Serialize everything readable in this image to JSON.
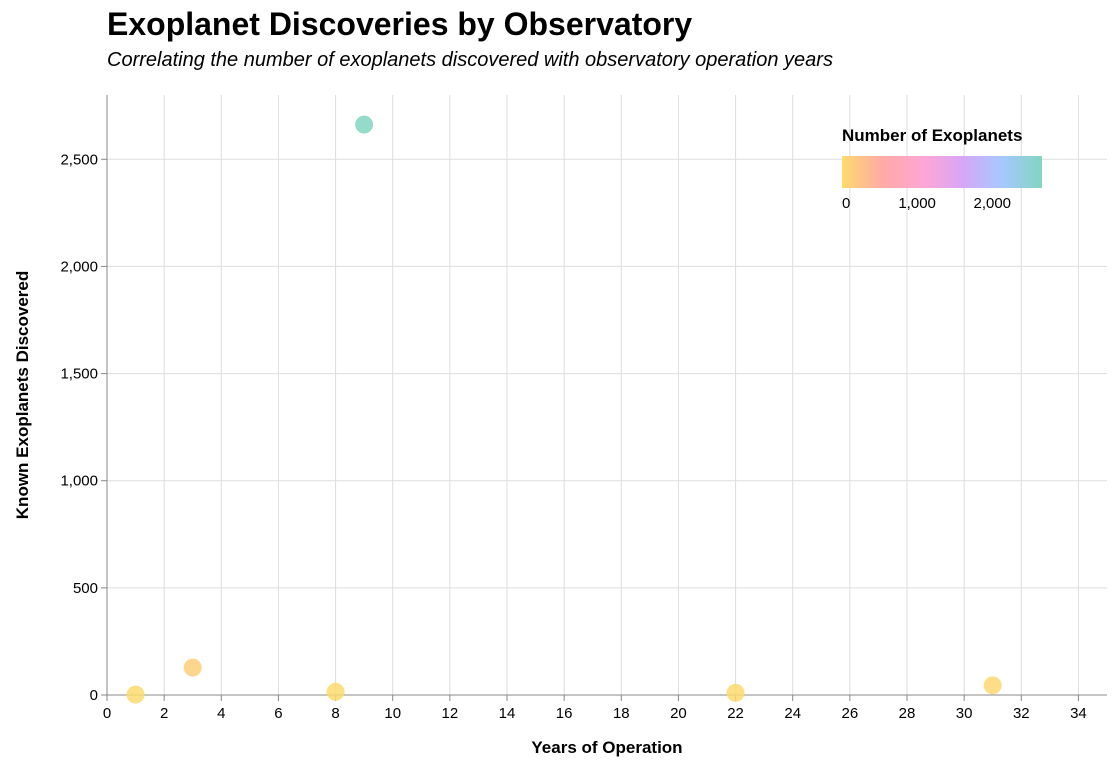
{
  "chart_data": {
    "type": "scatter",
    "title": "Exoplanet Discoveries by Observatory",
    "subtitle": "Correlating the number of exoplanets discovered with observatory operation years",
    "xlabel": "Years of Operation",
    "ylabel": "Known Exoplanets Discovered",
    "xlim": [
      0,
      35
    ],
    "ylim": [
      0,
      2800
    ],
    "x_ticks": [
      0,
      2,
      4,
      6,
      8,
      10,
      12,
      14,
      16,
      18,
      20,
      22,
      24,
      26,
      28,
      30,
      32,
      34
    ],
    "y_ticks": [
      0,
      500,
      1000,
      1500,
      2000,
      2500
    ],
    "y_tick_labels": [
      "0",
      "500",
      "1,000",
      "1,500",
      "2,000",
      "2,500"
    ],
    "grid": true,
    "points": [
      {
        "x": 1,
        "y": 2
      },
      {
        "x": 3,
        "y": 128
      },
      {
        "x": 8,
        "y": 15
      },
      {
        "x": 9,
        "y": 2662
      },
      {
        "x": 22,
        "y": 10
      },
      {
        "x": 31,
        "y": 45
      }
    ],
    "legend": {
      "title": "Number of Exoplanets",
      "placement": "top-right",
      "domain": [
        0,
        2662
      ],
      "ticks": [
        0,
        1000,
        2000
      ],
      "tick_labels": [
        "0",
        "1,000",
        "2,000"
      ],
      "colors": [
        "#fddb6d",
        "#ffaaa5",
        "#ffa6d3",
        "#d8a6f6",
        "#a6c8ff",
        "#83d5c0"
      ]
    }
  }
}
